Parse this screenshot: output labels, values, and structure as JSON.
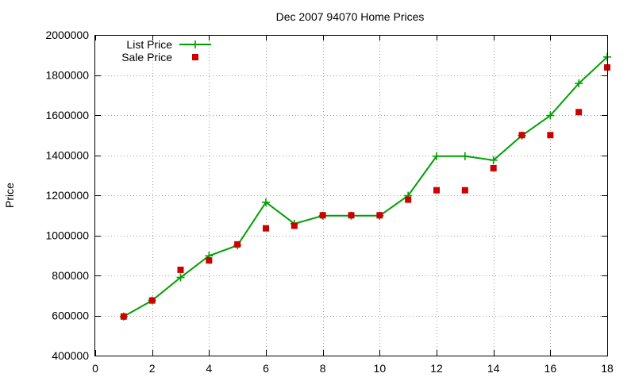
{
  "chart_data": {
    "type": "line",
    "title": "Dec 2007 94070 Home Prices",
    "xlabel": "",
    "ylabel": "Price",
    "xlim": [
      0,
      18
    ],
    "ylim": [
      400000,
      2000000
    ],
    "x_ticks": [
      0,
      2,
      4,
      6,
      8,
      10,
      12,
      14,
      16,
      18
    ],
    "y_ticks": [
      400000,
      600000,
      800000,
      1000000,
      1200000,
      1400000,
      1600000,
      1800000,
      2000000
    ],
    "x_tick_labels": [
      "0",
      "2",
      "4",
      "6",
      "8",
      "10",
      "12",
      "14",
      "16",
      "18"
    ],
    "y_tick_labels": [
      "400000",
      "600000",
      "800000",
      "1000000",
      "1200000",
      "1400000",
      "1600000",
      "1800000",
      "2000000"
    ],
    "grid": true,
    "legend_position": "top-left",
    "series": [
      {
        "name": "List Price",
        "style": "line-with-plus-markers",
        "color": "#00a000",
        "x": [
          1,
          2,
          3,
          4,
          5,
          6,
          7,
          8,
          9,
          10,
          11,
          12,
          13,
          14,
          15,
          16,
          17,
          18
        ],
        "values": [
          595000,
          675000,
          790000,
          898000,
          950000,
          1165000,
          1058000,
          1098000,
          1098000,
          1098000,
          1198000,
          1395000,
          1395000,
          1375000,
          1498000,
          1598000,
          1758000,
          1890000
        ]
      },
      {
        "name": "Sale Price",
        "style": "square-markers",
        "color": "#cc0000",
        "x": [
          1,
          2,
          3,
          4,
          5,
          6,
          7,
          8,
          9,
          10,
          11,
          12,
          13,
          14,
          15,
          16,
          17,
          18
        ],
        "values": [
          595000,
          675000,
          828000,
          875000,
          955000,
          1035000,
          1048000,
          1100000,
          1100000,
          1100000,
          1178000,
          1225000,
          1225000,
          1335000,
          1500000,
          1500000,
          1615000,
          1838000
        ]
      }
    ]
  }
}
